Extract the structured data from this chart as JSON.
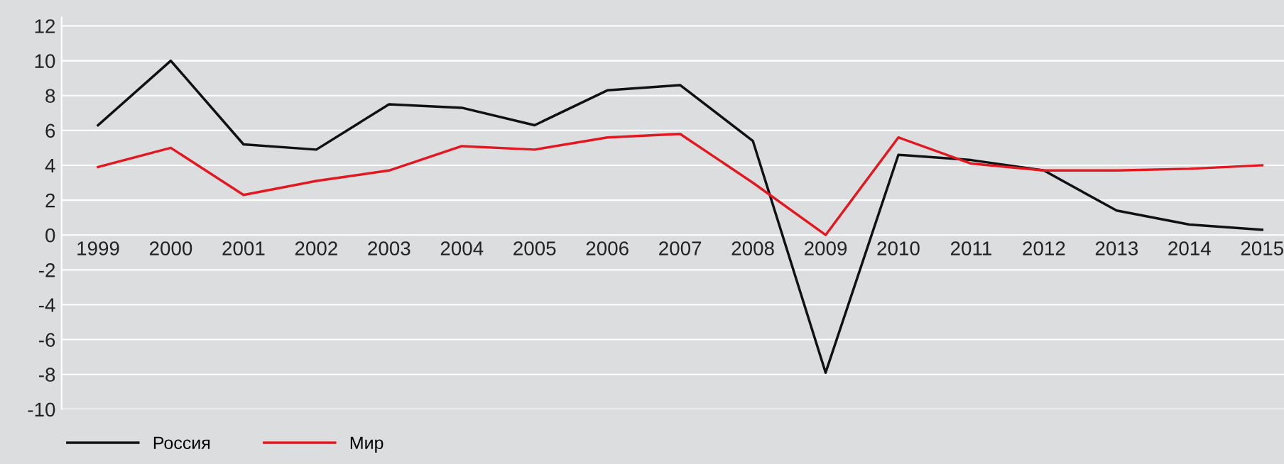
{
  "chart_data": {
    "type": "line",
    "categories": [
      "1999",
      "2000",
      "2001",
      "2002",
      "2003",
      "2004",
      "2005",
      "2006",
      "2007",
      "2008",
      "2009",
      "2010",
      "2011",
      "2012",
      "2013",
      "2014",
      "2015"
    ],
    "series": [
      {
        "name": "Россия",
        "color": "#111111",
        "values": [
          6.3,
          10.0,
          5.2,
          4.9,
          7.5,
          7.3,
          6.3,
          8.3,
          8.6,
          5.4,
          -7.9,
          4.6,
          4.3,
          3.7,
          1.4,
          0.6,
          0.3
        ]
      },
      {
        "name": "Мир",
        "color": "#e3171f",
        "values": [
          3.9,
          5.0,
          2.3,
          3.1,
          3.7,
          5.1,
          4.9,
          5.6,
          5.8,
          3.0,
          0.0,
          5.6,
          4.1,
          3.7,
          3.7,
          3.8,
          4.0
        ]
      }
    ],
    "ylim": [
      -10,
      12.5
    ],
    "yticks": [
      -10,
      -8,
      -6,
      -4,
      -2,
      0,
      2,
      4,
      6,
      8,
      10,
      12
    ],
    "grid": "y",
    "legend": "bottom left",
    "marker": "none",
    "line_style": "solid"
  }
}
